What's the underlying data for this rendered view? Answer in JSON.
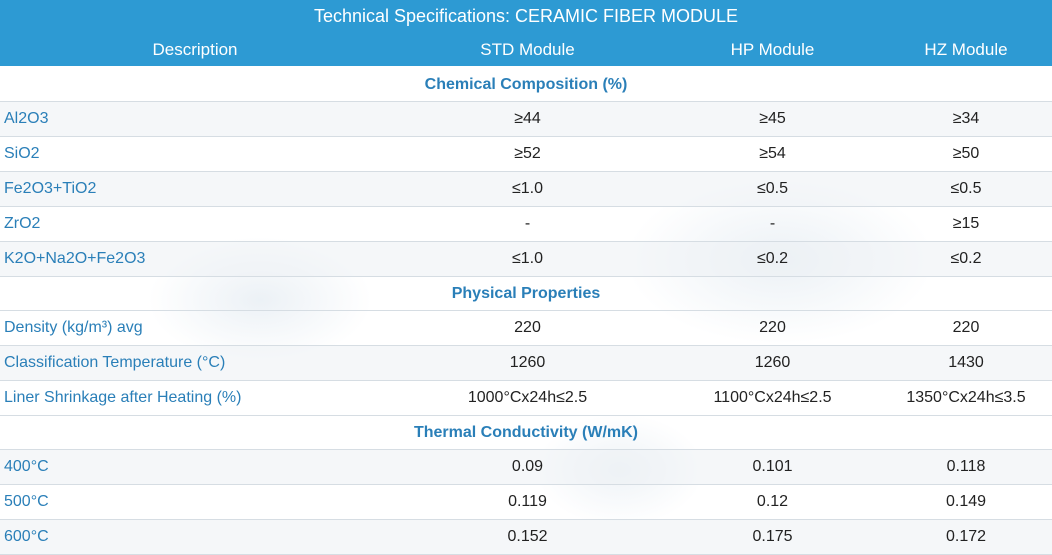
{
  "title": "Technical Specifications: CERAMIC FIBER MODULE",
  "columns": [
    "Description",
    "STD Module",
    "HP Module",
    "HZ Module"
  ],
  "sections": [
    {
      "heading": "Chemical Composition (%)",
      "rows": [
        {
          "desc": "Al2O3",
          "std": "≥44",
          "hp": "≥45",
          "hz": "≥34"
        },
        {
          "desc": "SiO2",
          "std": "≥52",
          "hp": "≥54",
          "hz": "≥50"
        },
        {
          "desc": "Fe2O3+TiO2",
          "std": "≤1.0",
          "hp": "≤0.5",
          "hz": "≤0.5"
        },
        {
          "desc": "ZrO2",
          "std": "-",
          "hp": "-",
          "hz": "≥15"
        },
        {
          "desc": "K2O+Na2O+Fe2O3",
          "std": "≤1.0",
          "hp": "≤0.2",
          "hz": "≤0.2"
        }
      ]
    },
    {
      "heading": "Physical Properties",
      "rows": [
        {
          "desc": "Density (kg/m³) avg",
          "std": "220",
          "hp": "220",
          "hz": "220"
        },
        {
          "desc": "Classification Temperature (°C)",
          "std": "1260",
          "hp": "1260",
          "hz": "1430"
        },
        {
          "desc": "Liner Shrinkage after Heating (%)",
          "std": "1000°Cx24h≤2.5",
          "hp": "1100°Cx24h≤2.5",
          "hz": "1350°Cx24h≤3.5"
        }
      ]
    },
    {
      "heading": "Thermal Conductivity (W/mK)",
      "rows": [
        {
          "desc": "400°C",
          "std": "0.09",
          "hp": "0.101",
          "hz": "0.118"
        },
        {
          "desc": "500°C",
          "std": "0.119",
          "hp": "0.12",
          "hz": "0.149"
        },
        {
          "desc": "600°C",
          "std": "0.152",
          "hp": "0.175",
          "hz": "0.172"
        }
      ]
    }
  ],
  "colors": {
    "header_bg": "#2d9ad3",
    "header_text": "#ffffff",
    "accent_text": "#2a7fb8"
  }
}
